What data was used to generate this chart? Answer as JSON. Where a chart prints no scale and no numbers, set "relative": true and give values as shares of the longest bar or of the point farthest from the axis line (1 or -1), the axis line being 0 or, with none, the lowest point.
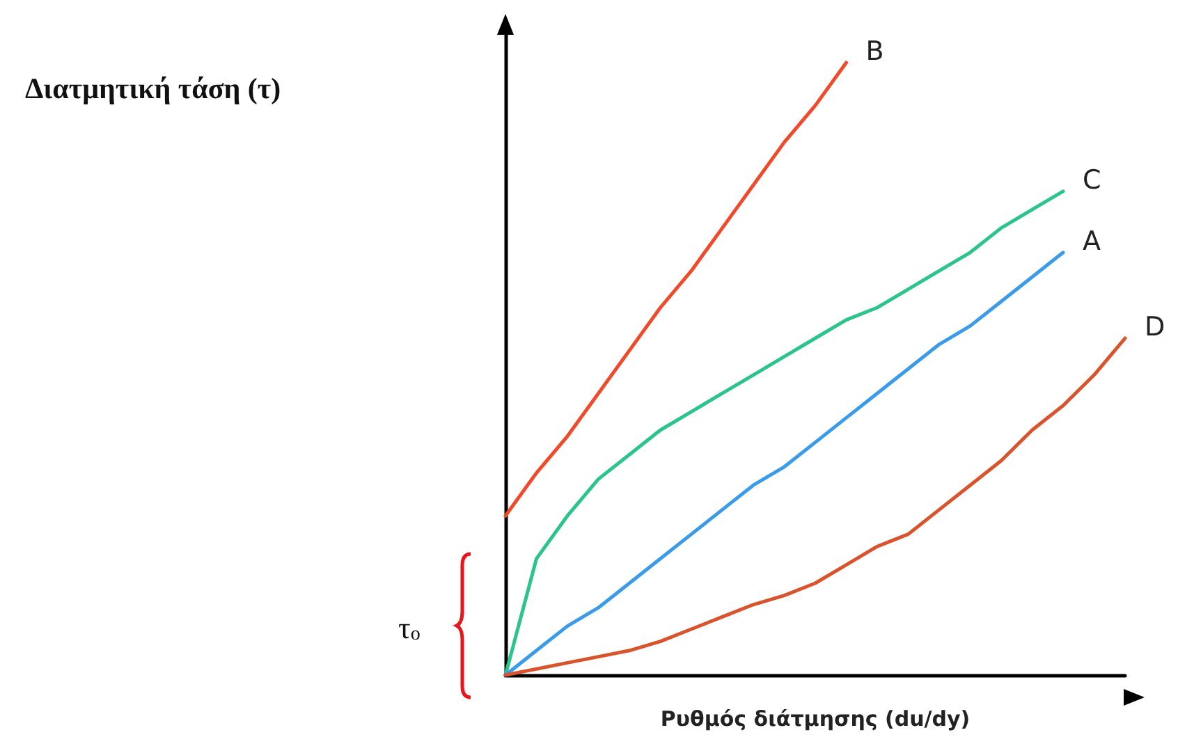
{
  "chart_data": {
    "type": "line",
    "relative": true,
    "xlabel": "Ρυθμός διάτμησης (du/dy)",
    "annotations": [
      "Διατμητική τάση (τ)",
      "τ$_{o}$"
    ],
    "tick_labels": false,
    "grid": false,
    "legend": false,
    "marker": "none",
    "line_style": "solid",
    "categories": [
      null,
      null,
      null,
      null,
      null,
      null,
      null,
      null,
      null,
      null,
      null,
      null,
      null,
      null,
      null,
      null,
      null,
      null,
      null,
      null,
      null
    ],
    "series": [
      {
        "name": "B",
        "color": "#f04a2a",
        "values": [
          0.26,
          0.33,
          0.39,
          0.46,
          0.53,
          0.6,
          0.66,
          0.73,
          0.8,
          0.87,
          0.93,
          1,
          null,
          null,
          null,
          null,
          null,
          null,
          null,
          null,
          null
        ]
      },
      {
        "name": "C",
        "color": "#2bc48a",
        "values": [
          0,
          0.19,
          0.26,
          0.32,
          0.36,
          0.4,
          0.43,
          0.46,
          0.49,
          0.52,
          0.55,
          0.58,
          0.6,
          0.63,
          0.66,
          0.69,
          0.73,
          0.76,
          0.79,
          null,
          null
        ]
      },
      {
        "name": "A",
        "color": "#3a9be8",
        "values": [
          0,
          0.04,
          0.08,
          0.11,
          0.15,
          0.19,
          0.23,
          0.27,
          0.31,
          0.34,
          0.38,
          0.42,
          0.46,
          0.5,
          0.54,
          0.57,
          0.61,
          0.65,
          0.69,
          null,
          null
        ]
      },
      {
        "name": "D",
        "color": "#d9532c",
        "values": [
          0,
          0.01,
          0.02,
          0.03,
          0.04,
          0.055,
          0.075,
          0.095,
          0.115,
          0.13,
          0.15,
          0.18,
          0.21,
          0.23,
          0.27,
          0.31,
          0.35,
          0.4,
          0.44,
          0.49,
          0.55
        ]
      }
    ]
  }
}
